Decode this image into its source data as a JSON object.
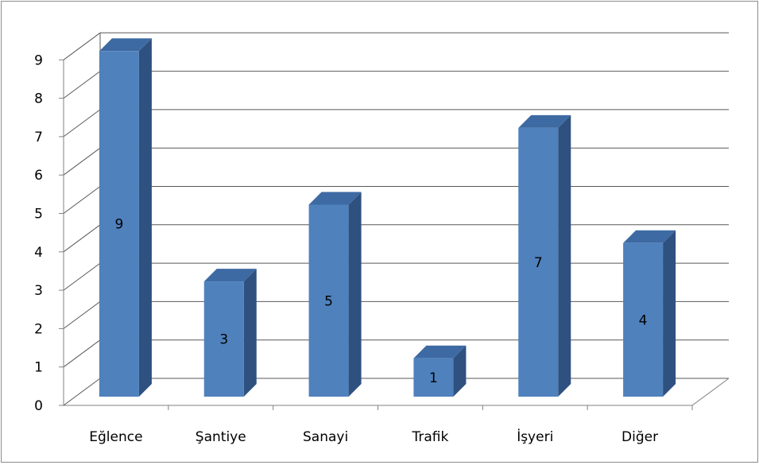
{
  "chart_data": {
    "type": "bar",
    "style": "3d-column",
    "categories": [
      "Eğlence",
      "Şantiye",
      "Sanayi",
      "Trafik",
      "İşyeri",
      "Diğer"
    ],
    "values": [
      9,
      3,
      5,
      1,
      7,
      4
    ],
    "data_labels": [
      "9",
      "3",
      "5",
      "1",
      "7",
      "4"
    ],
    "y_ticks": [
      "0",
      "1",
      "2",
      "3",
      "4",
      "5",
      "6",
      "7",
      "8",
      "9"
    ],
    "ylim": [
      0,
      9
    ],
    "grid": true,
    "legend": "none",
    "title": "",
    "xlabel": "",
    "ylabel": "",
    "colors": {
      "bar_front": "#4f81bd",
      "bar_side": "#2f5180",
      "bar_top": "#3e6aa3",
      "gridline": "#595959",
      "axis": "#808080"
    }
  }
}
